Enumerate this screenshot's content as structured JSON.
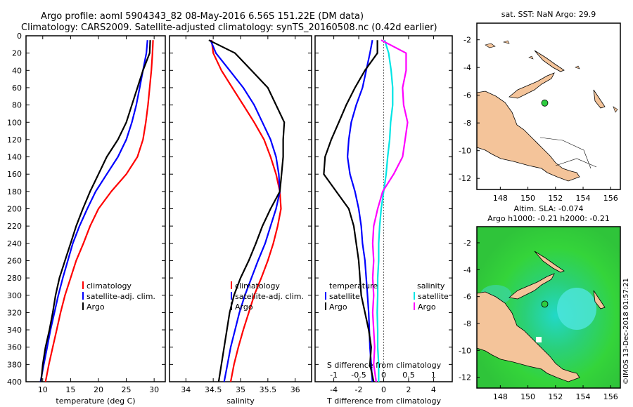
{
  "header": {
    "title_line1": "Argo profile: aoml 5904343_82 08-May-2016 6.56S 151.22E (DM data)",
    "title_line2": "Climatology: CARS2009. Satellite-adjusted climatology: synTS_20160508.nc (0.42d earlier)"
  },
  "watermark": "©IMOS 13-Dec-2018 01:57:21",
  "colors": {
    "climatology": "#ff0000",
    "satellite": "#0000ff",
    "argo": "#000000",
    "sal_satellite": "#00e5e5",
    "sal_argo": "#ff00ff",
    "land": "#f4c49a",
    "sea": "#ffffff"
  },
  "chart_data": [
    {
      "type": "line",
      "name": "temperature-panel",
      "xlabel": "temperature (deg C)",
      "ylabel": "depth",
      "xlim": [
        7,
        32
      ],
      "ylim": [
        400,
        0
      ],
      "xticks": [
        10,
        15,
        20,
        25,
        30
      ],
      "yticks": [
        0,
        20,
        40,
        60,
        80,
        100,
        120,
        140,
        160,
        180,
        200,
        220,
        240,
        260,
        280,
        300,
        320,
        340,
        360,
        380,
        400
      ],
      "legend": [
        "climatology",
        "satellite-adj. clim.",
        "Argo"
      ],
      "series": [
        {
          "name": "climatology",
          "color": "#ff0000",
          "depth": [
            5,
            20,
            40,
            60,
            80,
            100,
            120,
            140,
            160,
            180,
            200,
            220,
            240,
            260,
            280,
            300,
            320,
            340,
            360,
            380,
            400
          ],
          "values": [
            29.8,
            29.7,
            29.5,
            29.2,
            28.9,
            28.5,
            28.0,
            27.0,
            25.0,
            22.3,
            20.0,
            18.5,
            17.3,
            16.0,
            15.0,
            14.0,
            13.2,
            12.5,
            11.8,
            11.1,
            10.5
          ]
        },
        {
          "name": "satellite-adj. clim.",
          "color": "#0000ff",
          "depth": [
            5,
            20,
            40,
            60,
            80,
            100,
            120,
            140,
            160,
            180,
            200,
            220,
            240,
            260,
            280,
            300,
            320,
            340,
            360,
            380,
            400
          ],
          "values": [
            28.8,
            28.6,
            28.0,
            27.4,
            26.8,
            26.0,
            25.0,
            23.5,
            21.5,
            19.5,
            18.0,
            16.6,
            15.4,
            14.5,
            13.6,
            12.8,
            12.1,
            11.4,
            10.8,
            10.2,
            9.6
          ]
        },
        {
          "name": "Argo",
          "color": "#000000",
          "depth": [
            5,
            20,
            40,
            60,
            80,
            100,
            120,
            140,
            160,
            180,
            200,
            220,
            240,
            260,
            280,
            300,
            320,
            340,
            360,
            380,
            400
          ],
          "values": [
            29.3,
            29.2,
            28.0,
            27.0,
            26.0,
            25.0,
            23.5,
            21.5,
            20.0,
            18.5,
            17.2,
            16.0,
            15.0,
            14.0,
            13.0,
            12.3,
            11.8,
            11.2,
            10.5,
            10.0,
            9.7
          ]
        }
      ]
    },
    {
      "type": "line",
      "name": "salinity-panel",
      "xlabel": "salinity",
      "xlim": [
        33.7,
        36.3
      ],
      "ylim": [
        400,
        0
      ],
      "xticks": [
        34,
        34.5,
        35,
        35.5,
        36
      ],
      "legend": [
        "climatology",
        "satellite-adj. clim.",
        "Argo"
      ],
      "series": [
        {
          "name": "climatology",
          "color": "#ff0000",
          "depth": [
            5,
            20,
            40,
            60,
            80,
            100,
            120,
            140,
            160,
            180,
            200,
            220,
            240,
            260,
            280,
            300,
            320,
            340,
            360,
            380,
            400
          ],
          "values": [
            34.47,
            34.5,
            34.65,
            34.85,
            35.05,
            35.25,
            35.43,
            35.55,
            35.65,
            35.72,
            35.74,
            35.68,
            35.6,
            35.5,
            35.38,
            35.25,
            35.15,
            35.05,
            34.96,
            34.88,
            34.82
          ]
        },
        {
          "name": "satellite-adj. clim.",
          "color": "#0000ff",
          "depth": [
            5,
            20,
            40,
            60,
            80,
            100,
            120,
            140,
            160,
            180,
            200,
            220,
            240,
            260,
            280,
            300,
            320,
            340,
            360,
            380,
            400
          ],
          "values": [
            34.45,
            34.55,
            34.8,
            35.05,
            35.25,
            35.4,
            35.55,
            35.65,
            35.7,
            35.72,
            35.65,
            35.55,
            35.45,
            35.32,
            35.2,
            35.08,
            34.98,
            34.9,
            34.82,
            34.76,
            34.7
          ]
        },
        {
          "name": "Argo",
          "color": "#000000",
          "depth": [
            5,
            20,
            40,
            60,
            80,
            100,
            120,
            140,
            160,
            180,
            200,
            220,
            240,
            260,
            280,
            300,
            320,
            340,
            360,
            380,
            400
          ],
          "values": [
            34.42,
            34.9,
            35.2,
            35.5,
            35.65,
            35.8,
            35.78,
            35.78,
            35.75,
            35.72,
            35.55,
            35.4,
            35.28,
            35.15,
            35.0,
            34.88,
            34.8,
            34.75,
            34.7,
            34.65,
            34.6
          ]
        }
      ]
    },
    {
      "type": "line",
      "name": "difference-panel",
      "xlabel": "T difference from climatology",
      "xlabel_top": "S difference from climatology",
      "xlim": [
        -5.5,
        5.5
      ],
      "ylim": [
        400,
        0
      ],
      "xticks": [
        -4,
        -2,
        0,
        2,
        4
      ],
      "xticks_secondary": [
        -1,
        -0.5,
        0,
        0.5,
        1
      ],
      "legend_temperature": {
        "title": "temperature",
        "entries": [
          "satellite",
          "Argo"
        ]
      },
      "legend_salinity": {
        "title": "salinity",
        "entries": [
          "satellite",
          "Argo"
        ]
      },
      "series": [
        {
          "name": "temperature satellite",
          "color": "#0000ff",
          "depth": [
            5,
            20,
            40,
            60,
            80,
            100,
            120,
            140,
            160,
            180,
            200,
            220,
            240,
            260,
            280,
            300,
            320,
            340,
            360,
            380,
            400
          ],
          "values": [
            -0.9,
            -1.1,
            -1.4,
            -1.7,
            -2.2,
            -2.6,
            -2.8,
            -2.9,
            -2.7,
            -2.3,
            -2.0,
            -1.8,
            -1.7,
            -1.5,
            -1.4,
            -1.3,
            -1.2,
            -1.15,
            -1.1,
            -1.0,
            -0.9
          ]
        },
        {
          "name": "temperature Argo",
          "color": "#000000",
          "depth": [
            5,
            20,
            40,
            60,
            80,
            100,
            120,
            140,
            160,
            180,
            200,
            220,
            240,
            260,
            280,
            300,
            320,
            340,
            360,
            380,
            400
          ],
          "values": [
            -0.5,
            -0.5,
            -1.5,
            -2.3,
            -3.0,
            -3.6,
            -4.2,
            -4.7,
            -4.8,
            -3.8,
            -2.8,
            -2.4,
            -2.2,
            -2.0,
            -1.9,
            -1.8,
            -1.5,
            -1.2,
            -1.0,
            -1.1,
            -0.8
          ]
        },
        {
          "name": "salinity satellite",
          "color": "#00e5e5",
          "depth": [
            5,
            20,
            40,
            60,
            80,
            100,
            120,
            140,
            160,
            180,
            200,
            220,
            240,
            260,
            280,
            300,
            320,
            340,
            360,
            380,
            400
          ],
          "values": [
            0.02,
            0.1,
            0.15,
            0.18,
            0.18,
            0.14,
            0.12,
            0.08,
            0.05,
            0.0,
            -0.05,
            -0.08,
            -0.1,
            -0.1,
            -0.12,
            -0.12,
            -0.13,
            -0.12,
            -0.12,
            -0.1,
            -0.1
          ]
        },
        {
          "name": "salinity Argo",
          "color": "#ff00ff",
          "depth": [
            5,
            20,
            40,
            60,
            80,
            100,
            120,
            140,
            160,
            180,
            200,
            220,
            240,
            260,
            280,
            300,
            320,
            340,
            360,
            380,
            400
          ],
          "values": [
            -0.05,
            0.45,
            0.45,
            0.38,
            0.4,
            0.48,
            0.43,
            0.38,
            0.2,
            -0.02,
            -0.12,
            -0.2,
            -0.22,
            -0.2,
            -0.22,
            -0.2,
            -0.22,
            -0.2,
            -0.18,
            -0.2,
            -0.15
          ]
        }
      ]
    },
    {
      "type": "map",
      "name": "sst-map",
      "title": "sat. SST: NaN Argo: 29.9",
      "xticks": [
        148,
        150,
        152,
        154,
        156
      ],
      "yticks": [
        -2,
        -4,
        -6,
        -8,
        -10,
        -12
      ],
      "xlim": [
        146.3,
        156.7
      ],
      "ylim": [
        -12.8,
        -0.8
      ],
      "argo_position": {
        "lon": 151.22,
        "lat": -6.56
      }
    },
    {
      "type": "map",
      "name": "sla-map",
      "title_line1": "Altim. SLA: -0.074",
      "title_line2": "Argo h1000: -0.21 h2000: -0.21",
      "xticks": [
        148,
        150,
        152,
        154,
        156
      ],
      "yticks": [
        -2,
        -4,
        -6,
        -8,
        -10,
        -12
      ],
      "xlim": [
        146.3,
        156.7
      ],
      "ylim": [
        -12.8,
        -0.8
      ],
      "argo_position": {
        "lon": 151.22,
        "lat": -6.56
      }
    }
  ]
}
